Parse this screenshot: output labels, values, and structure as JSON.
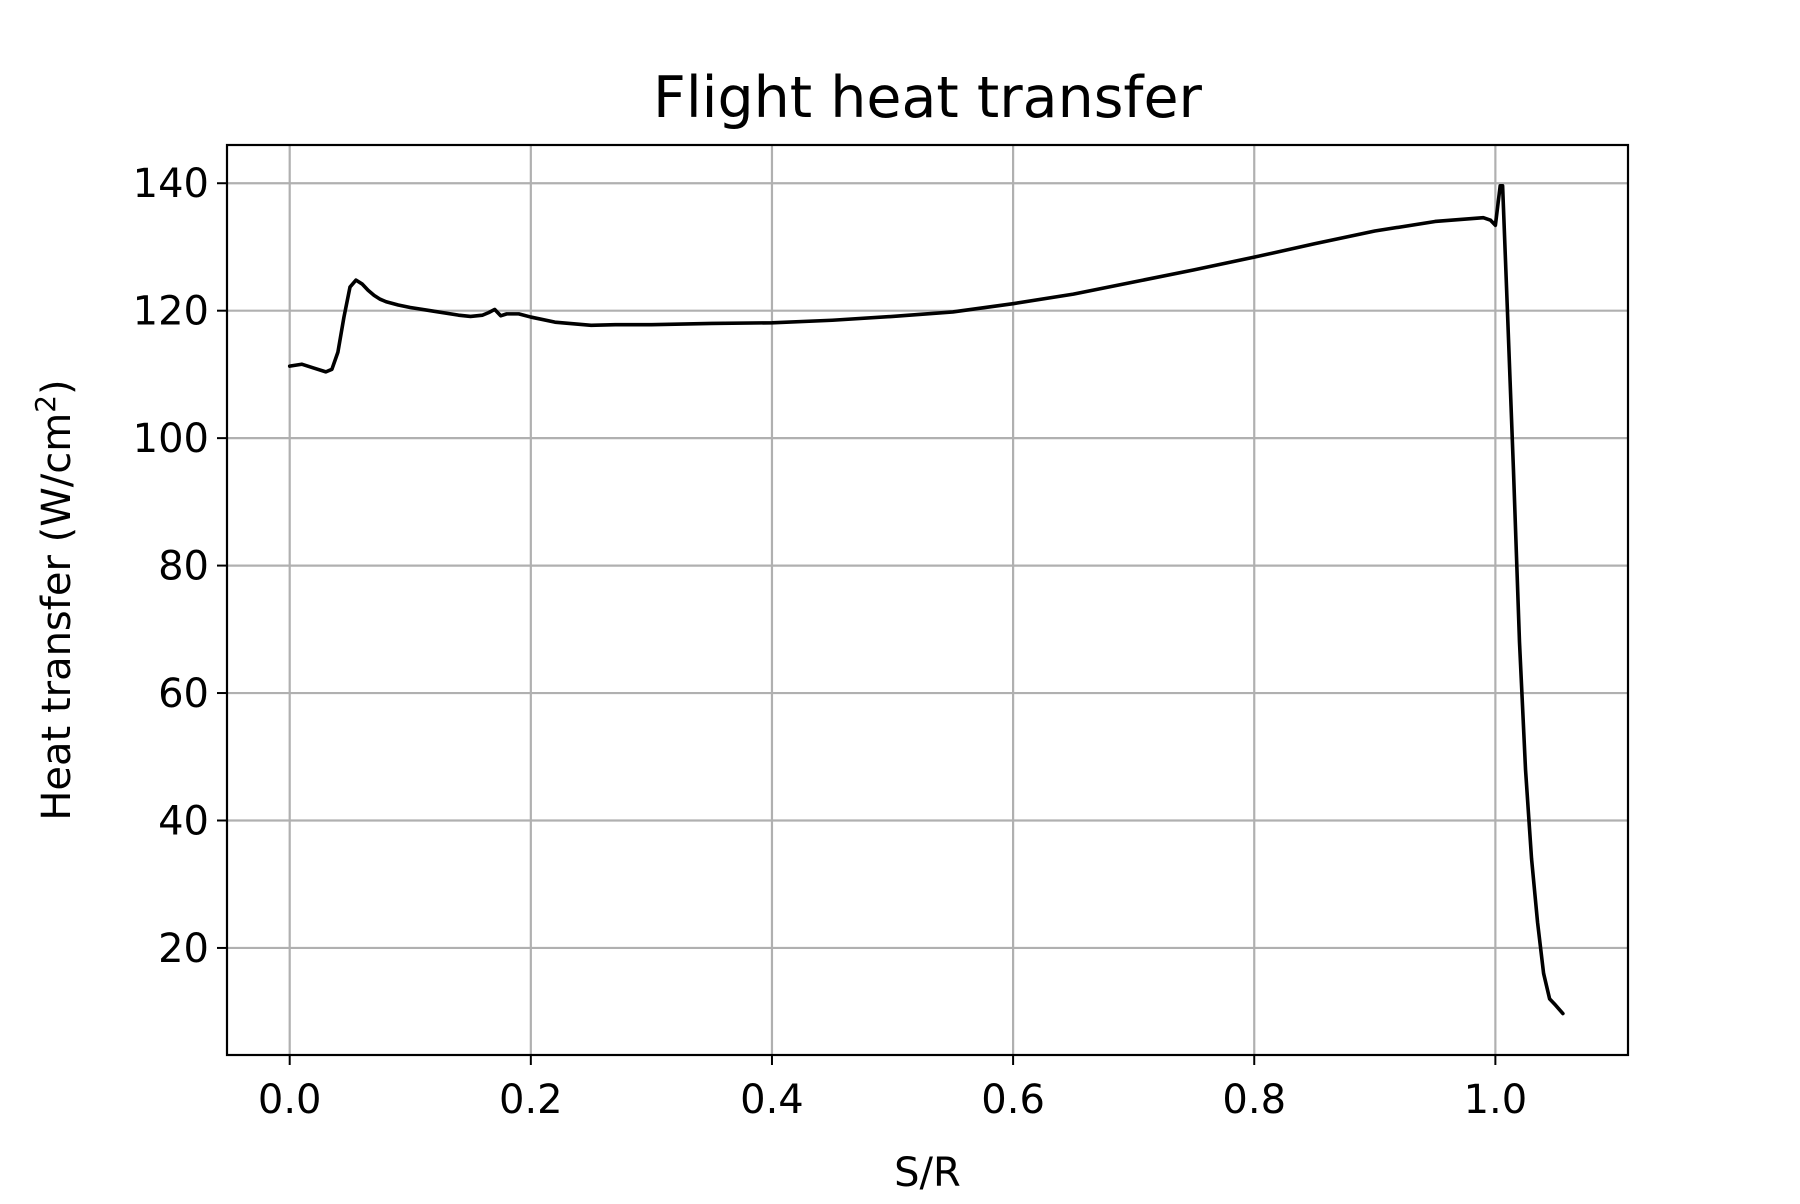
{
  "chart_data": {
    "type": "line",
    "title": "Flight heat transfer",
    "xlabel": "S/R",
    "ylabel_main": "Heat transfer (W/cm",
    "ylabel_sup": "2",
    "ylabel_close": ")",
    "xlim": [
      -0.052,
      1.11
    ],
    "ylim": [
      3.2,
      146
    ],
    "xticks": [
      0.0,
      0.2,
      0.4,
      0.6,
      0.8,
      1.0
    ],
    "xtick_labels": [
      "0.0",
      "0.2",
      "0.4",
      "0.6",
      "0.8",
      "1.0"
    ],
    "yticks": [
      20,
      40,
      60,
      80,
      100,
      120,
      140
    ],
    "ytick_labels": [
      "20",
      "40",
      "60",
      "80",
      "100",
      "120",
      "140"
    ],
    "grid": true,
    "legend": "none",
    "line_color": "#000000",
    "grid_color": "#b0b0b0",
    "series": [
      {
        "x": [
          0.0,
          0.01,
          0.02,
          0.03,
          0.035,
          0.04,
          0.045,
          0.05,
          0.055,
          0.06,
          0.065,
          0.07,
          0.075,
          0.08,
          0.09,
          0.1,
          0.12,
          0.14,
          0.15,
          0.16,
          0.165,
          0.17,
          0.175,
          0.18,
          0.19,
          0.2,
          0.22,
          0.25,
          0.27,
          0.3,
          0.35,
          0.4,
          0.45,
          0.5,
          0.55,
          0.6,
          0.65,
          0.7,
          0.75,
          0.8,
          0.85,
          0.9,
          0.95,
          0.99,
          0.996,
          1.0,
          1.004,
          1.006,
          1.01,
          1.015,
          1.02,
          1.025,
          1.03,
          1.035,
          1.04,
          1.045,
          1.05,
          1.056
        ],
        "y": [
          111.3,
          111.6,
          111.0,
          110.4,
          110.8,
          113.5,
          119.0,
          123.7,
          124.8,
          124.2,
          123.2,
          122.4,
          121.8,
          121.4,
          120.9,
          120.5,
          119.9,
          119.3,
          119.1,
          119.3,
          119.7,
          120.2,
          119.2,
          119.5,
          119.5,
          119.0,
          118.2,
          117.7,
          117.8,
          117.8,
          118.0,
          118.1,
          118.5,
          119.1,
          119.8,
          121.1,
          122.6,
          124.5,
          126.4,
          128.4,
          130.5,
          132.5,
          134.0,
          134.6,
          134.2,
          133.4,
          139.6,
          139.6,
          120.0,
          95.0,
          68.0,
          48.0,
          34.0,
          24.0,
          16.0,
          12.0,
          11.0,
          9.7
        ]
      }
    ]
  }
}
